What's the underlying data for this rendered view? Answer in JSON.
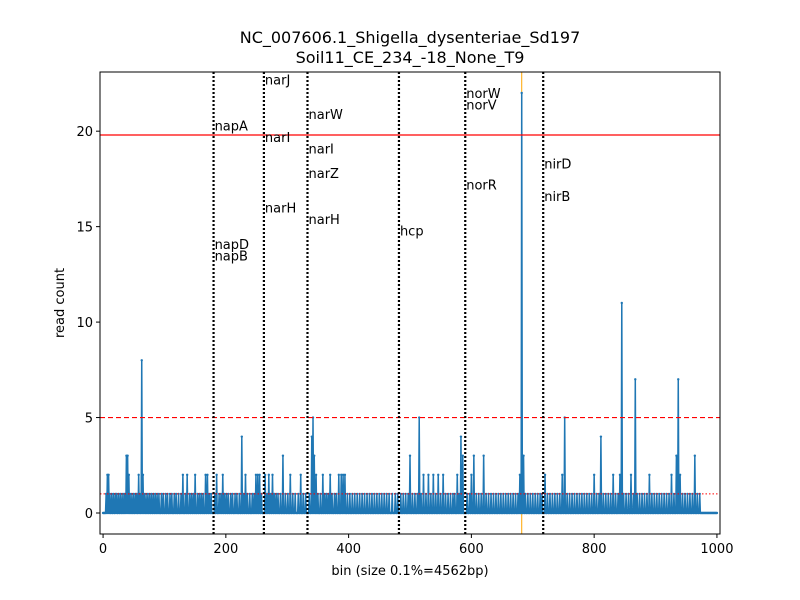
{
  "chart_data": {
    "type": "line",
    "title": "NC_007606.1_Shigella_dysenteriae_Sd197",
    "subtitle": "Soil11_CE_234_-18_None_T9",
    "xlabel": "bin (size 0.1%=4562bp)",
    "ylabel": "read count",
    "xlim": [
      -5,
      1005
    ],
    "ylim": [
      -1.1,
      23.1
    ],
    "xticks": [
      0,
      200,
      400,
      600,
      800,
      1000
    ],
    "yticks": [
      0,
      5,
      10,
      15,
      20
    ],
    "grid": false,
    "colors": {
      "series": "#1f77b4",
      "hline_max": "#ff0000",
      "hline_dashed": "#ff0000",
      "hline_dotted": "#ff0000",
      "gene_lines": "#000000",
      "peak_marker": "#ffa500"
    },
    "reference_lines": [
      {
        "y": 19.8,
        "style": "solid"
      },
      {
        "y": 5,
        "style": "dashed"
      },
      {
        "y": 1,
        "style": "dotted"
      }
    ],
    "peak_marker_x": 682,
    "gene_markers": [
      {
        "x": 180,
        "labels": [
          {
            "text": "napA",
            "y": 20.3
          },
          {
            "text": "napD",
            "y": 14.1
          },
          {
            "text": "napB",
            "y": 13.5
          }
        ]
      },
      {
        "x": 262,
        "labels": [
          {
            "text": "narJ",
            "y": 22.7
          },
          {
            "text": "narI",
            "y": 19.7
          },
          {
            "text": "narH",
            "y": 16.0
          }
        ]
      },
      {
        "x": 333,
        "labels": [
          {
            "text": "narW",
            "y": 20.9
          },
          {
            "text": "narI",
            "y": 19.1
          },
          {
            "text": "narZ",
            "y": 17.8
          },
          {
            "text": "narH",
            "y": 15.4
          }
        ]
      },
      {
        "x": 482,
        "labels": [
          {
            "text": "hcp",
            "y": 14.8
          }
        ]
      },
      {
        "x": 590,
        "labels": [
          {
            "text": "norW",
            "y": 22.0
          },
          {
            "text": "norV",
            "y": 21.4
          },
          {
            "text": "norR",
            "y": 17.2
          }
        ]
      },
      {
        "x": 717,
        "labels": [
          {
            "text": "nirD",
            "y": 18.3
          },
          {
            "text": "nirB",
            "y": 16.6
          }
        ]
      }
    ],
    "series": [
      {
        "length": 1001,
        "baseline": 0,
        "values_sparse": [
          [
            5,
            1
          ],
          [
            7,
            2
          ],
          [
            9,
            2
          ],
          [
            11,
            1
          ],
          [
            14,
            1
          ],
          [
            17,
            1
          ],
          [
            20,
            1
          ],
          [
            22,
            1
          ],
          [
            25,
            1
          ],
          [
            28,
            1
          ],
          [
            31,
            1
          ],
          [
            34,
            1
          ],
          [
            36,
            1
          ],
          [
            38,
            3
          ],
          [
            40,
            3
          ],
          [
            42,
            2
          ],
          [
            44,
            1
          ],
          [
            47,
            1
          ],
          [
            50,
            1
          ],
          [
            53,
            1
          ],
          [
            55,
            1
          ],
          [
            58,
            2
          ],
          [
            60,
            1
          ],
          [
            63,
            8
          ],
          [
            65,
            2
          ],
          [
            67,
            1
          ],
          [
            70,
            1
          ],
          [
            73,
            1
          ],
          [
            76,
            1
          ],
          [
            79,
            1
          ],
          [
            82,
            1
          ],
          [
            85,
            1
          ],
          [
            88,
            1
          ],
          [
            91,
            1
          ],
          [
            95,
            1
          ],
          [
            98,
            1
          ],
          [
            102,
            1
          ],
          [
            105,
            1
          ],
          [
            109,
            1
          ],
          [
            112,
            1
          ],
          [
            116,
            1
          ],
          [
            119,
            1
          ],
          [
            123,
            1
          ],
          [
            127,
            1
          ],
          [
            130,
            2
          ],
          [
            134,
            1
          ],
          [
            137,
            2
          ],
          [
            141,
            1
          ],
          [
            144,
            1
          ],
          [
            147,
            1
          ],
          [
            150,
            2
          ],
          [
            154,
            1
          ],
          [
            157,
            1
          ],
          [
            160,
            1
          ],
          [
            163,
            1
          ],
          [
            167,
            2
          ],
          [
            170,
            2
          ],
          [
            173,
            1
          ],
          [
            176,
            1
          ],
          [
            182,
            1
          ],
          [
            185,
            2
          ],
          [
            189,
            1
          ],
          [
            192,
            1
          ],
          [
            195,
            2
          ],
          [
            198,
            1
          ],
          [
            201,
            1
          ],
          [
            204,
            1
          ],
          [
            208,
            1
          ],
          [
            211,
            1
          ],
          [
            215,
            1
          ],
          [
            218,
            1
          ],
          [
            222,
            1
          ],
          [
            226,
            4
          ],
          [
            229,
            1
          ],
          [
            232,
            2
          ],
          [
            235,
            1
          ],
          [
            239,
            1
          ],
          [
            243,
            1
          ],
          [
            246,
            1
          ],
          [
            249,
            2
          ],
          [
            252,
            2
          ],
          [
            255,
            2
          ],
          [
            258,
            1
          ],
          [
            264,
            2
          ],
          [
            267,
            1
          ],
          [
            270,
            2
          ],
          [
            273,
            1
          ],
          [
            276,
            2
          ],
          [
            279,
            1
          ],
          [
            282,
            1
          ],
          [
            285,
            1
          ],
          [
            289,
            1
          ],
          [
            293,
            3
          ],
          [
            297,
            1
          ],
          [
            301,
            1
          ],
          [
            305,
            2
          ],
          [
            309,
            1
          ],
          [
            313,
            1
          ],
          [
            318,
            1
          ],
          [
            322,
            2
          ],
          [
            326,
            1
          ],
          [
            330,
            1
          ],
          [
            336,
            1
          ],
          [
            340,
            4
          ],
          [
            342,
            5
          ],
          [
            344,
            3
          ],
          [
            347,
            2
          ],
          [
            350,
            1
          ],
          [
            354,
            1
          ],
          [
            358,
            2
          ],
          [
            361,
            1
          ],
          [
            364,
            1
          ],
          [
            367,
            1
          ],
          [
            370,
            2
          ],
          [
            373,
            1
          ],
          [
            377,
            1
          ],
          [
            380,
            1
          ],
          [
            384,
            2
          ],
          [
            388,
            2
          ],
          [
            391,
            2
          ],
          [
            394,
            2
          ],
          [
            398,
            1
          ],
          [
            402,
            1
          ],
          [
            406,
            1
          ],
          [
            410,
            1
          ],
          [
            414,
            1
          ],
          [
            418,
            1
          ],
          [
            422,
            1
          ],
          [
            426,
            1
          ],
          [
            430,
            1
          ],
          [
            434,
            1
          ],
          [
            438,
            1
          ],
          [
            442,
            1
          ],
          [
            446,
            1
          ],
          [
            450,
            1
          ],
          [
            454,
            1
          ],
          [
            458,
            1
          ],
          [
            462,
            1
          ],
          [
            466,
            1
          ],
          [
            471,
            1
          ],
          [
            476,
            1
          ],
          [
            480,
            1
          ],
          [
            485,
            1
          ],
          [
            489,
            1
          ],
          [
            493,
            1
          ],
          [
            497,
            1
          ],
          [
            500,
            3
          ],
          [
            504,
            1
          ],
          [
            508,
            1
          ],
          [
            512,
            1
          ],
          [
            515,
            5
          ],
          [
            518,
            1
          ],
          [
            522,
            2
          ],
          [
            526,
            1
          ],
          [
            530,
            2
          ],
          [
            534,
            1
          ],
          [
            538,
            2
          ],
          [
            542,
            1
          ],
          [
            546,
            2
          ],
          [
            550,
            1
          ],
          [
            554,
            2
          ],
          [
            558,
            1
          ],
          [
            562,
            1
          ],
          [
            566,
            1
          ],
          [
            570,
            1
          ],
          [
            573,
            1
          ],
          [
            577,
            2
          ],
          [
            580,
            1
          ],
          [
            583,
            4
          ],
          [
            586,
            3
          ],
          [
            593,
            1
          ],
          [
            597,
            1
          ],
          [
            600,
            2
          ],
          [
            604,
            3
          ],
          [
            608,
            1
          ],
          [
            612,
            1
          ],
          [
            616,
            1
          ],
          [
            620,
            3
          ],
          [
            624,
            1
          ],
          [
            628,
            1
          ],
          [
            632,
            1
          ],
          [
            636,
            1
          ],
          [
            640,
            1
          ],
          [
            644,
            1
          ],
          [
            648,
            1
          ],
          [
            652,
            1
          ],
          [
            656,
            1
          ],
          [
            660,
            1
          ],
          [
            664,
            1
          ],
          [
            668,
            1
          ],
          [
            672,
            1
          ],
          [
            676,
            1
          ],
          [
            679,
            2
          ],
          [
            682,
            22
          ],
          [
            685,
            3
          ],
          [
            688,
            1
          ],
          [
            692,
            1
          ],
          [
            696,
            1
          ],
          [
            700,
            1
          ],
          [
            704,
            1
          ],
          [
            708,
            1
          ],
          [
            712,
            1
          ],
          [
            715,
            1
          ],
          [
            720,
            2
          ],
          [
            724,
            1
          ],
          [
            728,
            1
          ],
          [
            732,
            1
          ],
          [
            736,
            1
          ],
          [
            740,
            1
          ],
          [
            744,
            1
          ],
          [
            748,
            2
          ],
          [
            752,
            5
          ],
          [
            756,
            1
          ],
          [
            760,
            1
          ],
          [
            764,
            1
          ],
          [
            768,
            1
          ],
          [
            772,
            1
          ],
          [
            776,
            1
          ],
          [
            780,
            1
          ],
          [
            784,
            1
          ],
          [
            788,
            1
          ],
          [
            792,
            1
          ],
          [
            796,
            1
          ],
          [
            800,
            2
          ],
          [
            804,
            1
          ],
          [
            808,
            1
          ],
          [
            811,
            4
          ],
          [
            815,
            1
          ],
          [
            819,
            1
          ],
          [
            823,
            1
          ],
          [
            827,
            1
          ],
          [
            831,
            2
          ],
          [
            835,
            1
          ],
          [
            839,
            1
          ],
          [
            842,
            2
          ],
          [
            845,
            11
          ],
          [
            848,
            1
          ],
          [
            852,
            1
          ],
          [
            856,
            1
          ],
          [
            860,
            2
          ],
          [
            864,
            1
          ],
          [
            867,
            7
          ],
          [
            870,
            1
          ],
          [
            874,
            1
          ],
          [
            878,
            1
          ],
          [
            882,
            1
          ],
          [
            886,
            1
          ],
          [
            890,
            2
          ],
          [
            894,
            1
          ],
          [
            898,
            1
          ],
          [
            902,
            1
          ],
          [
            906,
            1
          ],
          [
            910,
            1
          ],
          [
            914,
            1
          ],
          [
            918,
            1
          ],
          [
            922,
            1
          ],
          [
            926,
            2
          ],
          [
            930,
            1
          ],
          [
            934,
            3
          ],
          [
            937,
            7
          ],
          [
            940,
            2
          ],
          [
            944,
            1
          ],
          [
            948,
            1
          ],
          [
            952,
            1
          ],
          [
            956,
            1
          ],
          [
            960,
            1
          ],
          [
            964,
            3
          ],
          [
            968,
            1
          ],
          [
            972,
            1
          ]
        ]
      }
    ]
  }
}
